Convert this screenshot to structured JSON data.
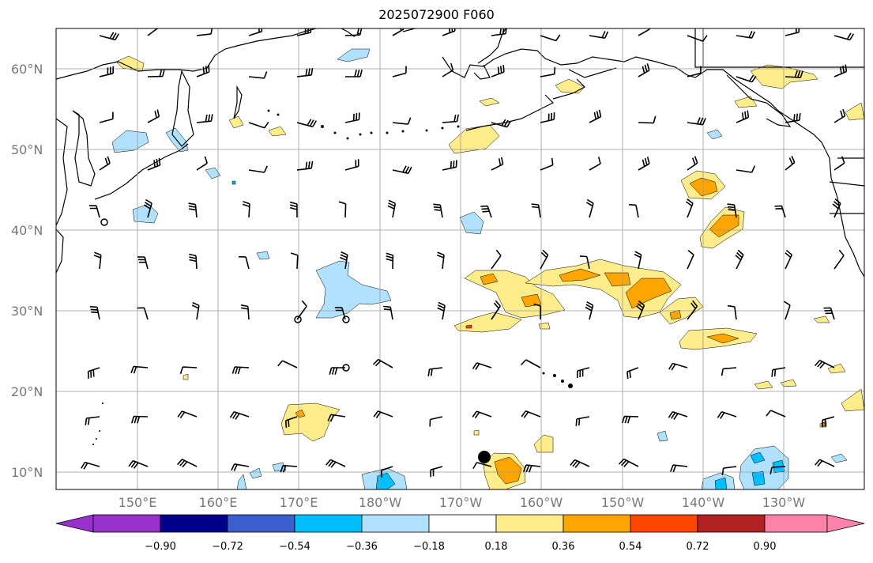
{
  "title": "2025072900 F060",
  "map": {
    "lat_labels": [
      "60°N",
      "50°N",
      "40°N",
      "30°N",
      "20°N",
      "10°N"
    ],
    "lon_labels": [
      "150°E",
      "160°E",
      "170°E",
      "180°W",
      "170°W",
      "160°W",
      "150°W",
      "140°W",
      "130°W"
    ],
    "gridlines": true
  },
  "colorbar": {
    "labels": [
      "−0.90",
      "−0.72",
      "−0.54",
      "−0.36",
      "−0.18",
      "0.18",
      "0.36",
      "0.54",
      "0.72",
      "0.90"
    ],
    "colors": [
      "#9932cc",
      "#00008b",
      "#3a5fcd",
      "#00bfff",
      "#b0e2ff",
      "#ffffff",
      "#ffec8b",
      "#ffa500",
      "#ff4500",
      "#b22222",
      "#ff82ab"
    ],
    "extend": "both"
  },
  "colors": {
    "light_blue": "#b0e2ff",
    "blue": "#00bfff",
    "yellow": "#ffec8b",
    "orange": "#ffa500",
    "red": "#ff4500"
  }
}
